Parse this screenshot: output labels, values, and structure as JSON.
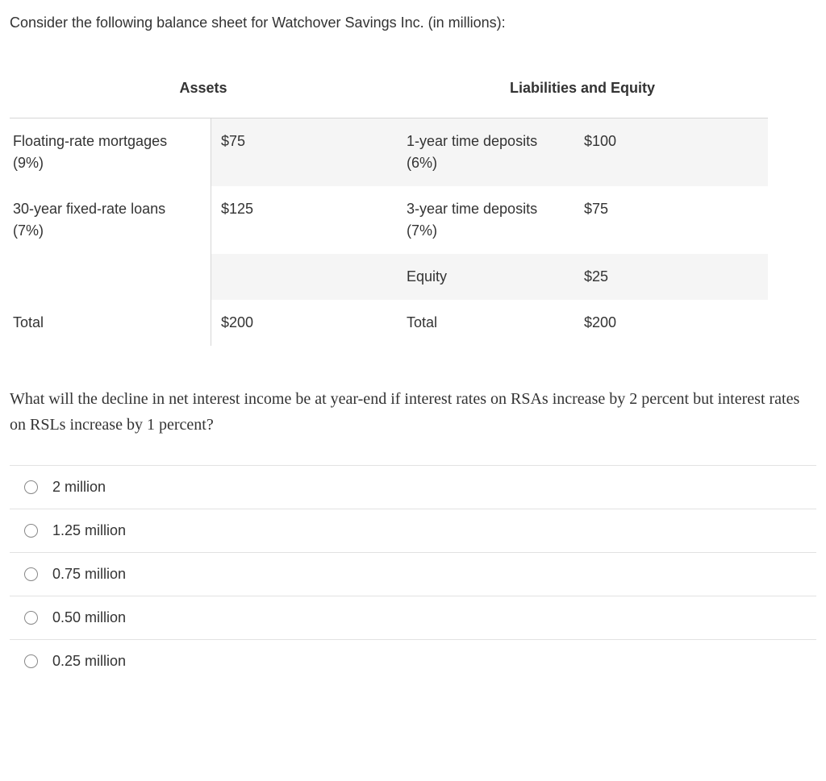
{
  "intro": "Consider the following balance sheet for Watchover Savings Inc. (in millions):",
  "table": {
    "header_left": "Assets",
    "header_right": "Liabilities and Equity",
    "rows": [
      {
        "asset_label": "Floating-rate mortgages",
        "asset_sub": "(9%)",
        "asset_value": "$75",
        "liab_label": "1-year time deposits",
        "liab_sub": "(6%)",
        "liab_value": "$100",
        "shaded": true
      },
      {
        "asset_label": "30-year fixed-rate loans",
        "asset_sub": "(7%)",
        "asset_value": "$125",
        "liab_label": "3-year time deposits",
        "liab_sub": "(7%)",
        "liab_value": "$75",
        "shaded": false
      },
      {
        "asset_label": "",
        "asset_sub": "",
        "asset_value": "",
        "liab_label": "Equity",
        "liab_sub": "",
        "liab_value": "$25",
        "shaded": true
      },
      {
        "asset_label": "Total",
        "asset_sub": "",
        "asset_value": "$200",
        "liab_label": "Total",
        "liab_sub": "",
        "liab_value": "$200",
        "shaded": false
      }
    ]
  },
  "question": "What will the decline in net interest income be at year-end if interest rates on RSAs increase by 2 percent but interest rates on RSLs increase by 1 percent?",
  "options": [
    "2 million",
    "1.25 million",
    "0.75 million",
    "0.50 million",
    "0.25 million"
  ],
  "colors": {
    "text": "#333333",
    "border": "#d6d6d6",
    "shade_bg": "#f5f5f5",
    "option_divider": "#e2e2e2",
    "radio_border": "#888888"
  }
}
